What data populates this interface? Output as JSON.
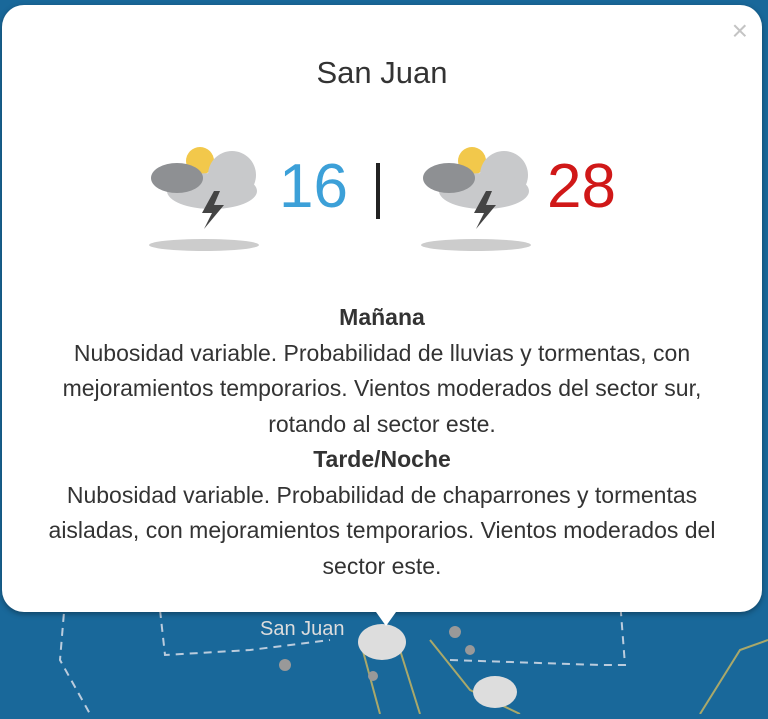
{
  "popup": {
    "title": "San Juan",
    "close_label": "×",
    "min_temp": "16",
    "separator": "|",
    "max_temp": "28",
    "min_icon": "partly-cloudy-thunderstorm-icon",
    "max_icon": "partly-cloudy-thunderstorm-icon",
    "colors": {
      "min": "#3ca0d8",
      "max": "#d01818"
    },
    "sections": [
      {
        "heading": "Mañana",
        "text": "Nubosidad variable. Probabilidad de lluvias y tormentas, con mejoramientos temporarios. Vientos moderados del sector sur, rotando al sector este."
      },
      {
        "heading": "Tarde/Noche",
        "text": "Nubosidad variable. Probabilidad de chaparrones y tormentas aisladas, con mejoramientos temporarios. Vientos moderados del sector este."
      }
    ]
  },
  "map": {
    "city_label": "San Juan"
  }
}
